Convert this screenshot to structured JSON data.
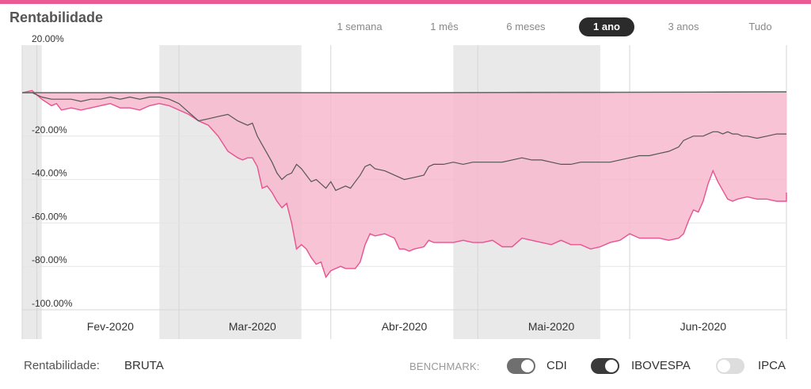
{
  "header": {
    "title": "Rentabilidade"
  },
  "periods": [
    {
      "label": "1 semana",
      "active": false
    },
    {
      "label": "1 mês",
      "active": false
    },
    {
      "label": "6 meses",
      "active": false
    },
    {
      "label": "1 ano",
      "active": true
    },
    {
      "label": "3 anos",
      "active": false
    },
    {
      "label": "Tudo",
      "active": false
    }
  ],
  "footer": {
    "rentabilidade_label": "Rentabilidade:",
    "rentabilidade_value": "BRUTA",
    "benchmark_label": "BENCHMARK:",
    "benchmarks": [
      {
        "label": "CDI",
        "on": true,
        "color": "#6f6f6f"
      },
      {
        "label": "IBOVESPA",
        "on": true,
        "color": "#3a3a3a"
      },
      {
        "label": "IPCA",
        "on": false,
        "color": "#dddddd"
      }
    ]
  },
  "chart_data": {
    "type": "area",
    "title": "",
    "xlabel": "",
    "ylabel": "",
    "ylim": [
      -100,
      20
    ],
    "y_ticks": [
      20,
      -20,
      -40,
      -60,
      -80,
      -100
    ],
    "y_tick_labels": [
      "20.00%",
      "-20.00%",
      "-40.00%",
      "-60.00%",
      "-80.00%",
      "-100.00%"
    ],
    "x_ticks": [
      {
        "label": "Fev-2020",
        "day": 36
      },
      {
        "label": "Mar-2020",
        "day": 65
      },
      {
        "label": "Abr-2020",
        "day": 96
      },
      {
        "label": "Mai-2020",
        "day": 126
      },
      {
        "label": "Jun-2020",
        "day": 157
      }
    ],
    "x_range_days": [
      18,
      174
    ],
    "shaded_months": [
      [
        46,
        75
      ],
      [
        106,
        136
      ]
    ],
    "colors": {
      "fund": "#e8528f",
      "fund_fill": "#f7b8cd",
      "ibovespa": "#555555",
      "cdi": "#666666"
    },
    "series": [
      {
        "name": "",
        "role": "fund",
        "points": [
          [
            18,
            0
          ],
          [
            20,
            1
          ],
          [
            22,
            -3
          ],
          [
            24,
            -6
          ],
          [
            25,
            -5
          ],
          [
            26,
            -8
          ],
          [
            28,
            -7
          ],
          [
            30,
            -8
          ],
          [
            32,
            -7
          ],
          [
            34,
            -6
          ],
          [
            36,
            -5
          ],
          [
            38,
            -7
          ],
          [
            40,
            -7
          ],
          [
            42,
            -8
          ],
          [
            44,
            -6
          ],
          [
            46,
            -5
          ],
          [
            48,
            -6
          ],
          [
            50,
            -8
          ],
          [
            52,
            -10
          ],
          [
            54,
            -13
          ],
          [
            56,
            -15
          ],
          [
            58,
            -20
          ],
          [
            60,
            -27
          ],
          [
            62,
            -30
          ],
          [
            63,
            -31
          ],
          [
            64,
            -30
          ],
          [
            65,
            -30
          ],
          [
            66,
            -34
          ],
          [
            67,
            -44
          ],
          [
            68,
            -43
          ],
          [
            69,
            -46
          ],
          [
            70,
            -50
          ],
          [
            71,
            -53
          ],
          [
            72,
            -51
          ],
          [
            73,
            -60
          ],
          [
            74,
            -72
          ],
          [
            75,
            -70
          ],
          [
            76,
            -72
          ],
          [
            77,
            -76
          ],
          [
            78,
            -79
          ],
          [
            79,
            -78
          ],
          [
            80,
            -85
          ],
          [
            81,
            -82
          ],
          [
            82,
            -81
          ],
          [
            83,
            -80
          ],
          [
            84,
            -81
          ],
          [
            85,
            -81
          ],
          [
            86,
            -81
          ],
          [
            87,
            -78
          ],
          [
            88,
            -70
          ],
          [
            89,
            -65
          ],
          [
            90,
            -66
          ],
          [
            92,
            -65
          ],
          [
            94,
            -67
          ],
          [
            95,
            -72
          ],
          [
            96,
            -72
          ],
          [
            97,
            -73
          ],
          [
            98,
            -72
          ],
          [
            100,
            -71
          ],
          [
            101,
            -68
          ],
          [
            102,
            -69
          ],
          [
            104,
            -69
          ],
          [
            106,
            -69
          ],
          [
            108,
            -68
          ],
          [
            110,
            -69
          ],
          [
            112,
            -69
          ],
          [
            114,
            -68
          ],
          [
            116,
            -71
          ],
          [
            118,
            -71
          ],
          [
            120,
            -67
          ],
          [
            122,
            -68
          ],
          [
            124,
            -69
          ],
          [
            126,
            -70
          ],
          [
            128,
            -68
          ],
          [
            130,
            -70
          ],
          [
            132,
            -70
          ],
          [
            134,
            -72
          ],
          [
            136,
            -71
          ],
          [
            138,
            -69
          ],
          [
            140,
            -68
          ],
          [
            142,
            -65
          ],
          [
            144,
            -67
          ],
          [
            146,
            -67
          ],
          [
            148,
            -67
          ],
          [
            150,
            -68
          ],
          [
            152,
            -67
          ],
          [
            153,
            -65
          ],
          [
            154,
            -59
          ],
          [
            155,
            -54
          ],
          [
            156,
            -55
          ],
          [
            157,
            -50
          ],
          [
            158,
            -42
          ],
          [
            159,
            -36
          ],
          [
            160,
            -41
          ],
          [
            161,
            -45
          ],
          [
            162,
            -49
          ],
          [
            163,
            -50
          ],
          [
            164,
            -49
          ],
          [
            166,
            -48
          ],
          [
            168,
            -49
          ],
          [
            170,
            -49
          ],
          [
            172,
            -50
          ],
          [
            174,
            -50
          ],
          [
            176,
            -46
          ],
          [
            177,
            -50
          ],
          [
            178,
            -48
          ],
          [
            180,
            -50
          ],
          [
            182,
            -50
          ]
        ]
      },
      {
        "name": "IBOVESPA",
        "role": "benchmark",
        "points": [
          [
            18,
            0
          ],
          [
            20,
            0
          ],
          [
            22,
            -2
          ],
          [
            24,
            -3
          ],
          [
            26,
            -3
          ],
          [
            28,
            -3
          ],
          [
            30,
            -4
          ],
          [
            32,
            -3
          ],
          [
            34,
            -3
          ],
          [
            36,
            -2
          ],
          [
            38,
            -3
          ],
          [
            40,
            -2
          ],
          [
            42,
            -3
          ],
          [
            44,
            -2
          ],
          [
            46,
            -2
          ],
          [
            48,
            -3
          ],
          [
            50,
            -5
          ],
          [
            52,
            -9
          ],
          [
            54,
            -13
          ],
          [
            56,
            -12
          ],
          [
            58,
            -11
          ],
          [
            60,
            -10
          ],
          [
            62,
            -13
          ],
          [
            64,
            -15
          ],
          [
            65,
            -14
          ],
          [
            66,
            -20
          ],
          [
            67,
            -24
          ],
          [
            68,
            -28
          ],
          [
            69,
            -32
          ],
          [
            70,
            -37
          ],
          [
            71,
            -40
          ],
          [
            72,
            -38
          ],
          [
            73,
            -37
          ],
          [
            74,
            -33
          ],
          [
            75,
            -35
          ],
          [
            76,
            -38
          ],
          [
            77,
            -41
          ],
          [
            78,
            -40
          ],
          [
            79,
            -42
          ],
          [
            80,
            -44
          ],
          [
            81,
            -41
          ],
          [
            82,
            -45
          ],
          [
            83,
            -44
          ],
          [
            84,
            -43
          ],
          [
            85,
            -44
          ],
          [
            86,
            -41
          ],
          [
            87,
            -38
          ],
          [
            88,
            -34
          ],
          [
            89,
            -33
          ],
          [
            90,
            -35
          ],
          [
            92,
            -36
          ],
          [
            94,
            -38
          ],
          [
            96,
            -40
          ],
          [
            98,
            -39
          ],
          [
            100,
            -38
          ],
          [
            101,
            -34
          ],
          [
            102,
            -33
          ],
          [
            104,
            -33
          ],
          [
            106,
            -32
          ],
          [
            108,
            -33
          ],
          [
            110,
            -32
          ],
          [
            112,
            -32
          ],
          [
            114,
            -32
          ],
          [
            116,
            -32
          ],
          [
            118,
            -31
          ],
          [
            120,
            -30
          ],
          [
            122,
            -31
          ],
          [
            124,
            -31
          ],
          [
            126,
            -32
          ],
          [
            128,
            -33
          ],
          [
            130,
            -33
          ],
          [
            132,
            -32
          ],
          [
            134,
            -32
          ],
          [
            136,
            -32
          ],
          [
            138,
            -32
          ],
          [
            140,
            -31
          ],
          [
            142,
            -30
          ],
          [
            144,
            -29
          ],
          [
            146,
            -29
          ],
          [
            148,
            -28
          ],
          [
            150,
            -27
          ],
          [
            152,
            -25
          ],
          [
            153,
            -22
          ],
          [
            154,
            -21
          ],
          [
            155,
            -20
          ],
          [
            156,
            -20
          ],
          [
            157,
            -20
          ],
          [
            158,
            -19
          ],
          [
            159,
            -18
          ],
          [
            160,
            -18
          ],
          [
            161,
            -19
          ],
          [
            162,
            -18
          ],
          [
            163,
            -19
          ],
          [
            164,
            -19
          ],
          [
            165,
            -20
          ],
          [
            166,
            -20
          ],
          [
            168,
            -21
          ],
          [
            170,
            -20
          ],
          [
            172,
            -19
          ],
          [
            174,
            -19
          ],
          [
            176,
            -19
          ],
          [
            178,
            -19
          ],
          [
            180,
            -19
          ],
          [
            182,
            -19
          ]
        ]
      },
      {
        "name": "CDI",
        "role": "benchmark",
        "points": [
          [
            18,
            0
          ],
          [
            40,
            0
          ],
          [
            60,
            0
          ],
          [
            80,
            0
          ],
          [
            100,
            0
          ],
          [
            120,
            0.1
          ],
          [
            140,
            0.2
          ],
          [
            160,
            0.3
          ],
          [
            182,
            0.4
          ]
        ]
      }
    ]
  }
}
